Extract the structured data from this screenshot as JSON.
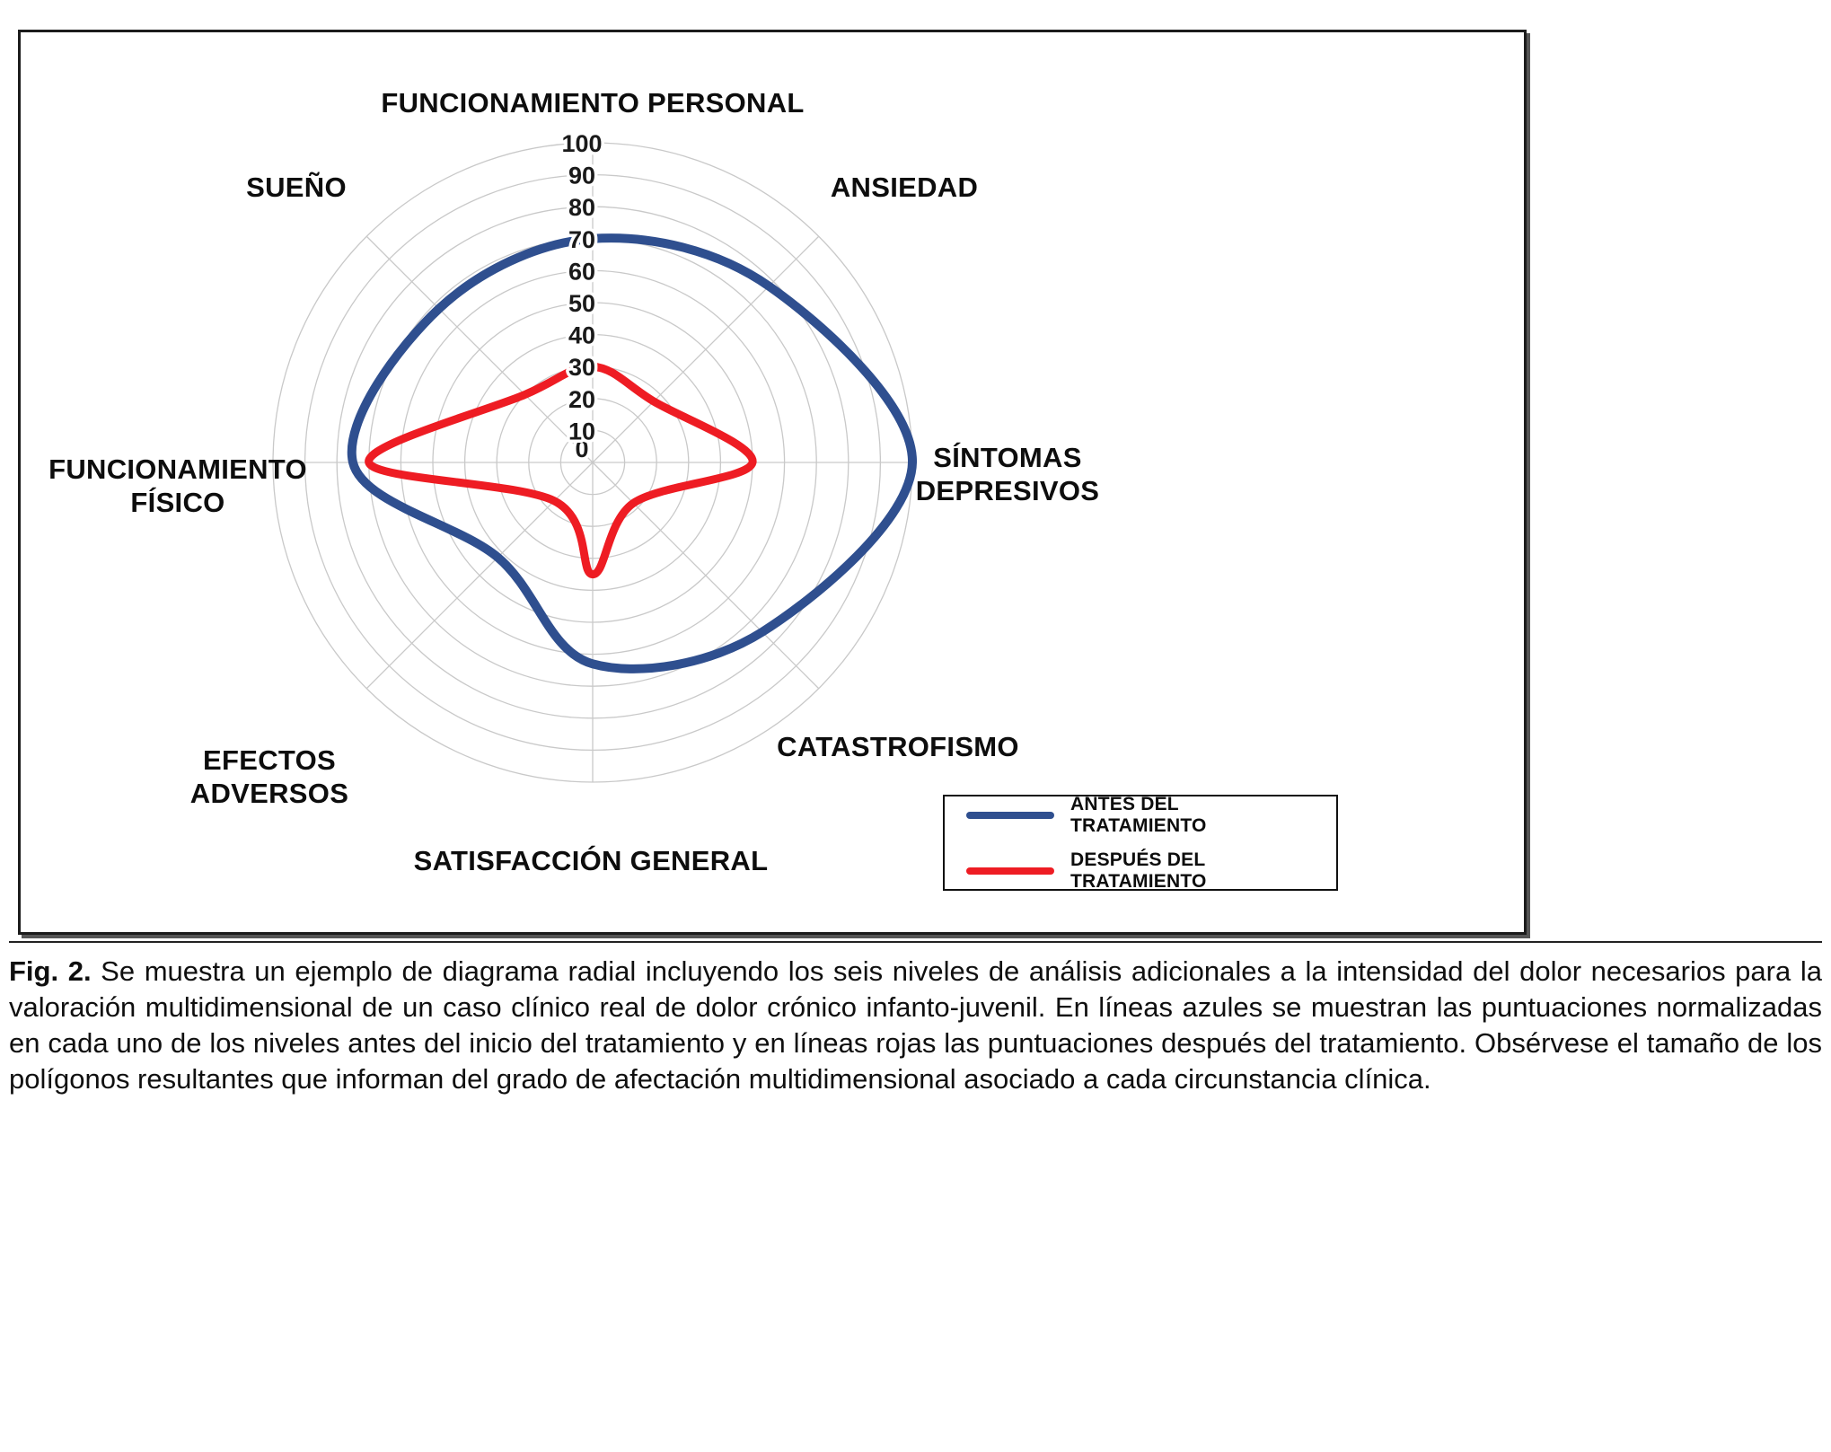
{
  "figure": {
    "label": "Fig. 2.",
    "caption": "Se muestra un ejemplo de diagrama radial incluyendo los seis niveles de análisis adicionales a la intensidad del dolor necesarios para la valoración multidimensional de un caso clínico real de dolor crónico infanto-juvenil. En líneas azules se muestran las puntuaciones normalizadas en cada uno de los niveles antes del inicio del tratamiento y en líneas rojas las puntuaciones después del tratamiento. Obsérvese el tamaño de los polígonos resultantes que informan del grado de afectación multidimensional asociado a cada circunstancia clínica."
  },
  "chart_data": {
    "type": "radar",
    "axes": [
      "FUNCIONAMIENTO PERSONAL",
      "ANSIEDAD",
      "SÍNTOMAS DEPRESIVOS",
      "CATASTROFISMO",
      "SATISFACCIÓN GENERAL",
      "EFECTOS ADVERSOS",
      "FUNCIONAMIENTO FÍSICO",
      "SUEÑO"
    ],
    "radial_ticks": [
      0,
      10,
      20,
      30,
      40,
      50,
      60,
      70,
      80,
      90,
      100
    ],
    "rlim": [
      0,
      100
    ],
    "grid": true,
    "grid_shape": "circular",
    "legend_position": "bottom-right",
    "series": [
      {
        "name": "ANTES DEL TRATAMIENTO",
        "color": "#2f4f8f",
        "values": [
          70,
          78,
          100,
          75,
          63,
          42,
          75,
          68
        ]
      },
      {
        "name": "DESPUÉS DEL TRATAMIENTO",
        "color": "#ee1c23",
        "values": [
          30,
          27,
          50,
          18,
          35,
          17,
          70,
          30
        ]
      }
    ]
  },
  "legend": {
    "items": [
      {
        "label": "ANTES DEL TRATAMIENTO",
        "color": "#2f4f8f"
      },
      {
        "label": "DESPUÉS DEL TRATAMIENTO",
        "color": "#ee1c23"
      }
    ]
  }
}
